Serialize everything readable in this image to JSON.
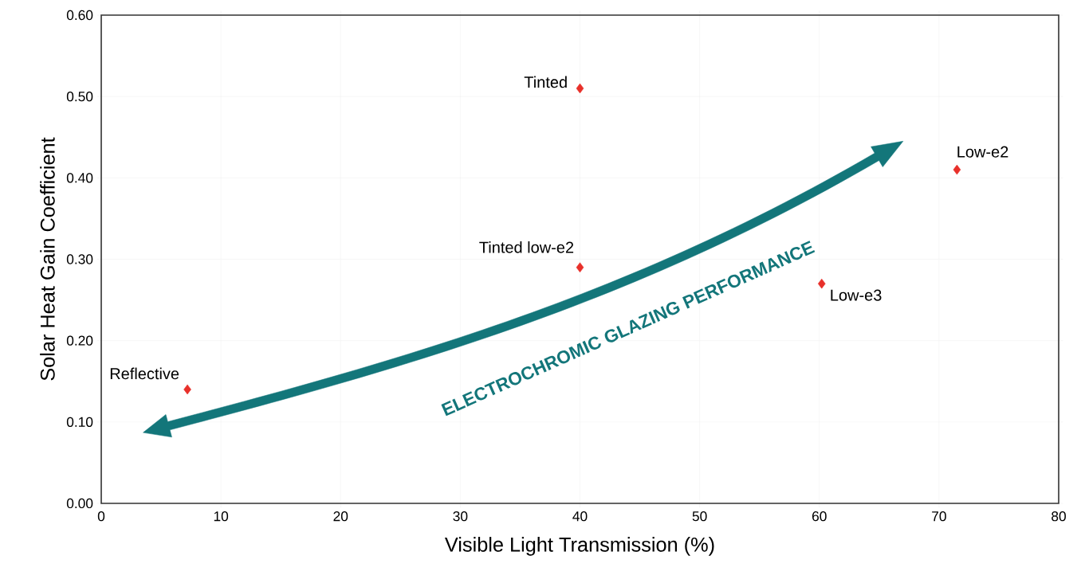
{
  "chart_data": {
    "type": "scatter",
    "xlabel": "Visible Light Transmission (%)",
    "ylabel": "Solar Heat Gain Coefficient",
    "x": [
      7.2,
      40,
      40,
      60.2,
      71.5
    ],
    "series": [
      {
        "color": "#e8302a",
        "values": [
          0.14,
          0.51,
          0.29,
          0.27,
          0.41
        ]
      }
    ],
    "marker": "diamond",
    "grid": true,
    "xlim": [
      0,
      80
    ],
    "xticks": [
      0,
      10,
      20,
      30,
      40,
      50,
      60,
      70,
      80
    ],
    "ylim": [
      0,
      0.6
    ],
    "yticks": [
      {
        "value": 0,
        "label": "0.00"
      },
      {
        "value": 0.1,
        "label": "0.10"
      },
      {
        "value": 0.2,
        "label": "0.20"
      },
      {
        "value": 0.3,
        "label": "0.30"
      },
      {
        "value": 0.4,
        "label": "0.40"
      },
      {
        "value": 0.5,
        "label": "0.50"
      },
      {
        "value": 0.6,
        "label": "0.60"
      }
    ],
    "annotations": [
      {
        "text": "Reflective",
        "x": 7.2,
        "y": 0.14
      },
      {
        "text": "Tinted",
        "x": 40,
        "y": 0.51
      },
      {
        "text": "Tinted low-e2",
        "x": 40,
        "y": 0.29
      },
      {
        "text": "Low-e3",
        "x": 60.2,
        "y": 0.27
      },
      {
        "text": "Low-e2",
        "x": 71.5,
        "y": 0.41
      },
      "ELECTROCHROMIC GLAZING PERFORMANCE"
    ]
  }
}
